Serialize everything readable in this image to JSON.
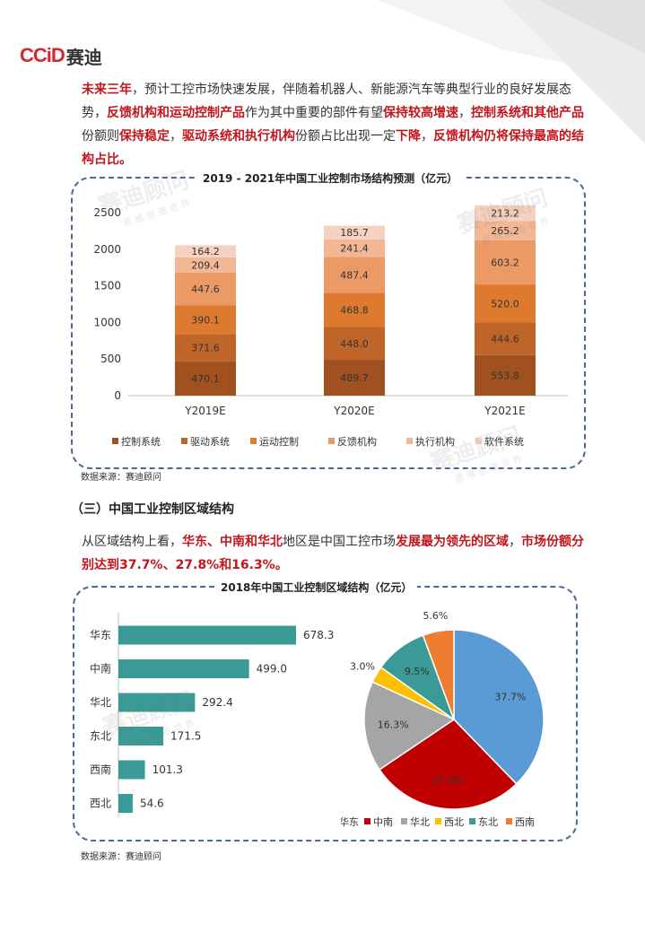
{
  "brand": {
    "logo_latin": "CCiD",
    "logo_cn": "赛迪"
  },
  "intro": {
    "segments": [
      {
        "t": "未来三年",
        "hl": true
      },
      {
        "t": "，预计工控市场快速发展，伴随着机器人、新能源汽车等典型行业的良好发展态势，",
        "hl": false
      },
      {
        "t": "反馈机构和运动控制产品",
        "hl": true
      },
      {
        "t": "作为其中重要的部件有望",
        "hl": false
      },
      {
        "t": "保持较高增速",
        "hl": true
      },
      {
        "t": "，",
        "hl": false
      },
      {
        "t": "控制系统和其他产品",
        "hl": true
      },
      {
        "t": "份额则",
        "hl": false
      },
      {
        "t": "保持稳定",
        "hl": true
      },
      {
        "t": "，",
        "hl": false
      },
      {
        "t": "驱动系统和执行机构",
        "hl": true
      },
      {
        "t": "份额占比出现一定",
        "hl": false
      },
      {
        "t": "下降",
        "hl": true
      },
      {
        "t": "，",
        "hl": false
      },
      {
        "t": "反馈机构仍将保持最高的结构占比。",
        "hl": true
      }
    ]
  },
  "chart1_title": "2019 - 2021年中国工业控制市场结构预测（亿元）",
  "source1": "数据来源：赛迪顾问",
  "section_heading": "（三）中国工业控制区域结构",
  "region_intro": {
    "segments": [
      {
        "t": "从区域结构上看，",
        "hl": false
      },
      {
        "t": "华东、中南和华北",
        "hl": true
      },
      {
        "t": "地区是中国工控市场",
        "hl": false
      },
      {
        "t": "发展最为领先的区域",
        "hl": true
      },
      {
        "t": "，",
        "hl": false
      },
      {
        "t": "市场份额分别达到37.7%、27.8%和16.3%。",
        "hl": true
      }
    ]
  },
  "chart2_title": "2018年中国工业控制区域结构（亿元）",
  "source2": "数据来源：赛迪顾问",
  "watermark": {
    "main": "赛迪顾问",
    "sub": "思 维 创 造 世 界"
  },
  "colors": {
    "accent_red": "#c0161c",
    "panel_border": "#4a6a96",
    "teal": "#3a9a96"
  },
  "chart_data": [
    {
      "type": "bar",
      "stacked": true,
      "title": "2019 - 2021年中国工业控制市场结构预测（亿元）",
      "categories": [
        "Y2019E",
        "Y2020E",
        "Y2021E"
      ],
      "yticks": [
        "0",
        "500",
        "1000",
        "1500",
        "2000",
        "2500"
      ],
      "ylim": [
        0,
        2500
      ],
      "series": [
        {
          "name": "控制系统",
          "color": "#a0511f",
          "values": [
            470.1,
            489.7,
            553.8
          ]
        },
        {
          "name": "驱动系统",
          "color": "#c0652a",
          "values": [
            371.6,
            448.0,
            444.6
          ]
        },
        {
          "name": "运动控制",
          "color": "#dd7a30",
          "values": [
            390.1,
            468.8,
            520.0
          ]
        },
        {
          "name": "反馈机构",
          "color": "#eb9a66",
          "values": [
            447.6,
            487.4,
            603.2
          ]
        },
        {
          "name": "执行机构",
          "color": "#f2b795",
          "values": [
            209.4,
            241.4,
            265.2
          ]
        },
        {
          "name": "软件系统",
          "color": "#f7d1bf",
          "values": [
            164.2,
            185.7,
            213.2
          ]
        }
      ],
      "labels": [
        [
          "470.1",
          "489.7",
          "553.8"
        ],
        [
          "371.6",
          "448.0",
          "444.6"
        ],
        [
          "390.1",
          "468.8",
          "520.0"
        ],
        [
          "447.6",
          "487.4",
          "603.2"
        ],
        [
          "209.4",
          "241.4",
          "265.2"
        ],
        [
          "164.2",
          "185.7",
          "213.2"
        ]
      ],
      "legend": "bottom",
      "grid": false
    },
    {
      "type": "bar",
      "orientation": "horizontal",
      "categories": [
        "华东",
        "中南",
        "华北",
        "东北",
        "西南",
        "西北"
      ],
      "values": [
        678.3,
        499.0,
        292.4,
        171.5,
        101.3,
        54.6
      ],
      "labels": [
        "678.3",
        "499.0",
        "292.4",
        "171.5",
        "101.3",
        "54.6"
      ],
      "color": "#3a9a96",
      "xlim": [
        0,
        700
      ]
    },
    {
      "type": "pie",
      "slices": [
        {
          "name": "华东",
          "value": 37.7,
          "label": "37.7%",
          "color": "#5b9bd5"
        },
        {
          "name": "中南",
          "value": 27.8,
          "label": "27.8%",
          "color": "#c00000"
        },
        {
          "name": "华北",
          "value": 16.3,
          "label": "16.3%",
          "color": "#a5a5a5"
        },
        {
          "name": "西北",
          "value": 3.0,
          "label": "3.0%",
          "color": "#ffc000"
        },
        {
          "name": "东北",
          "value": 9.5,
          "label": "9.5%",
          "color": "#3a9a96"
        },
        {
          "name": "西南",
          "value": 5.6,
          "label": "5.6%",
          "color": "#ed7d31"
        }
      ],
      "legend": "bottom"
    }
  ]
}
